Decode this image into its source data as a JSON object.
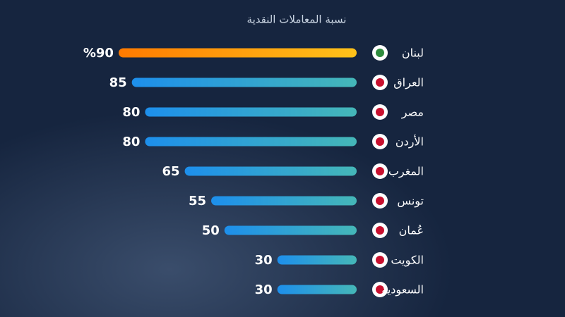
{
  "chart_data": {
    "type": "bar",
    "orientation": "horizontal",
    "subtitle": "نسبة المعاملات النقدية",
    "categories": [
      "لبنان",
      "العراق",
      "مصر",
      "الأردن",
      "المغرب",
      "تونس",
      "عُمان",
      "الكويت",
      "السعودية"
    ],
    "values": [
      90,
      85,
      80,
      80,
      65,
      55,
      50,
      30,
      30
    ],
    "value_labels": [
      "%90",
      "85",
      "80",
      "80",
      "65",
      "55",
      "50",
      "30",
      "30"
    ],
    "color": "#2b9be0",
    "highlight_color": "#ff8a00"
  }
}
